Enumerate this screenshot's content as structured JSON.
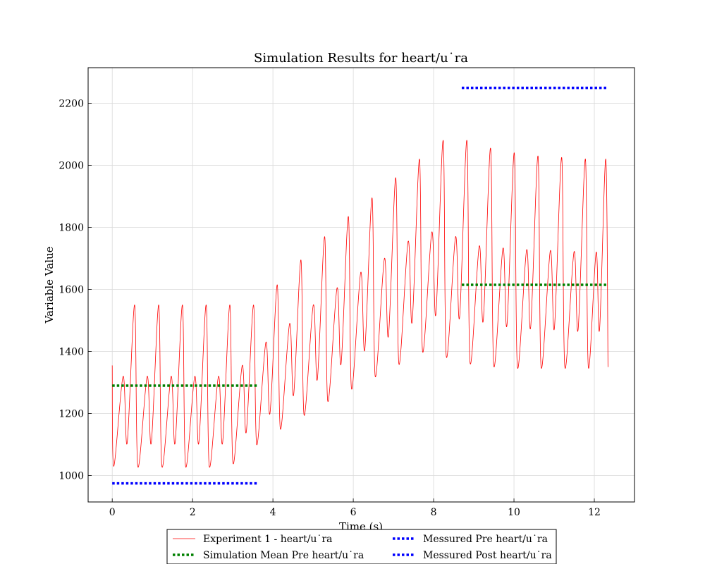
{
  "chart_data": {
    "type": "line",
    "title": "Simulation Results for heart/u˙ra",
    "xlabel": "Time (s)",
    "ylabel": "Variable Value",
    "xlim": [
      -0.6,
      13.0
    ],
    "ylim": [
      915,
      2315
    ],
    "xticks": [
      0,
      2,
      4,
      6,
      8,
      10,
      12
    ],
    "xtick_labels": [
      "0",
      "2",
      "4",
      "6",
      "8",
      "10",
      "12"
    ],
    "yticks": [
      1000,
      1200,
      1400,
      1600,
      1800,
      2000,
      2200
    ],
    "ytick_labels": [
      "1000",
      "1200",
      "1400",
      "1600",
      "1800",
      "2000",
      "2200"
    ],
    "grid": true,
    "legend_position": "bottom-center",
    "series": [
      {
        "name": "Experiment 1 - heart/u˙ra",
        "style": "solid",
        "color": "#ff0000",
        "cycle_start": [
          0,
          0.6,
          1.2,
          1.79,
          2.38,
          2.97,
          3.56,
          4.15,
          4.74,
          5.33,
          5.92,
          6.51,
          7.1,
          7.69,
          8.28,
          8.87,
          9.46,
          10.05,
          10.64,
          11.23,
          11.82
        ],
        "cycle_period": [
          0.6,
          0.6,
          0.59,
          0.59,
          0.59,
          0.59,
          0.59,
          0.59,
          0.59,
          0.59,
          0.59,
          0.59,
          0.59,
          0.59,
          0.59,
          0.59,
          0.59,
          0.59,
          0.59,
          0.59,
          0.5
        ],
        "cycle_peak": [
          1550,
          1550,
          1550,
          1550,
          1550,
          1550,
          1615,
          1695,
          1770,
          1835,
          1895,
          1960,
          2020,
          2080,
          2080,
          2055,
          2040,
          2030,
          2025,
          2020,
          2020
        ],
        "cycle_trough": [
          1030,
          1030,
          1030,
          1030,
          1030,
          1040,
          1100,
          1150,
          1195,
          1240,
          1280,
          1320,
          1360,
          1400,
          1385,
          1365,
          1355,
          1350,
          1350,
          1350,
          1350
        ],
        "cycle_valley": [
          1105,
          1105,
          1105,
          1105,
          1105,
          1140,
          1200,
          1260,
          1310,
          1360,
          1405,
          1450,
          1495,
          1520,
          1510,
          1500,
          1485,
          1478,
          1475,
          1470,
          1470
        ],
        "cycle_hump": [
          1320,
          1320,
          1320,
          1320,
          1320,
          1355,
          1430,
          1490,
          1550,
          1605,
          1655,
          1700,
          1755,
          1785,
          1770,
          1740,
          1733,
          1728,
          1725,
          1722,
          1720
        ],
        "start_value": 1355,
        "end_value": 1350
      },
      {
        "name": "Simulation Mean Pre heart/u˙ra",
        "style": "dotted",
        "color": "#008000",
        "x": [
          0,
          3.6
        ],
        "y": [
          1290,
          1290
        ]
      },
      {
        "name": "",
        "style": "dotted",
        "color": "#008000",
        "x": [
          8.7,
          12.3
        ],
        "y": [
          1615,
          1615
        ]
      },
      {
        "name": "Messured Pre heart/u˙ra",
        "style": "dotted",
        "color": "#0000ff",
        "x": [
          0,
          3.6
        ],
        "y": [
          975,
          975
        ]
      },
      {
        "name": "Messured Post heart/u˙ra",
        "style": "dotted",
        "color": "#0000ff",
        "x": [
          8.7,
          12.3
        ],
        "y": [
          2250,
          2250
        ]
      }
    ]
  }
}
